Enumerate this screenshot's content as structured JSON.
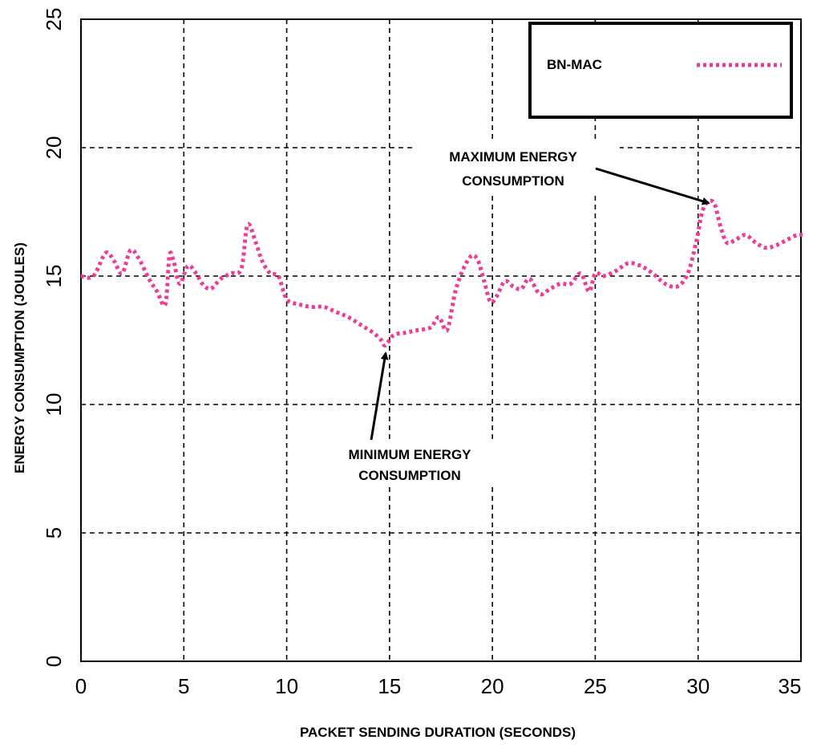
{
  "chart_data": {
    "type": "line",
    "title": "",
    "xlabel": "PACKET SENDING DURATION (SECONDS)",
    "ylabel": "ENERGY CONSUMPTION (JOULES)",
    "xlim": [
      0,
      35
    ],
    "ylim": [
      0,
      25
    ],
    "xticks": [
      0,
      5,
      10,
      15,
      20,
      25,
      30,
      35
    ],
    "yticks": [
      0,
      5,
      10,
      15,
      20,
      25
    ],
    "grid": true,
    "legend_position": "top-right",
    "series": [
      {
        "name": "BN-MAC",
        "color": "#ee3d96",
        "style": "dotted",
        "x": [
          0.0,
          0.6,
          1.2,
          1.6,
          2.0,
          2.4,
          2.8,
          3.3,
          3.7,
          4.1,
          4.3,
          4.5,
          4.8,
          5.2,
          5.6,
          5.9,
          6.3,
          6.8,
          7.3,
          7.8,
          8.1,
          8.5,
          8.8,
          9.2,
          9.6,
          10.0,
          10.6,
          11.2,
          11.8,
          12.4,
          13.0,
          13.6,
          14.2,
          14.6,
          14.8,
          15.2,
          15.8,
          16.4,
          17.0,
          17.4,
          17.8,
          18.2,
          18.6,
          19.0,
          19.3,
          19.6,
          19.9,
          20.2,
          20.6,
          21.0,
          21.4,
          21.8,
          22.3,
          22.8,
          23.3,
          23.8,
          24.3,
          24.7,
          25.0,
          25.4,
          26.0,
          26.6,
          27.2,
          27.8,
          28.4,
          29.0,
          29.5,
          29.9,
          30.2,
          30.5,
          30.8,
          31.1,
          31.4,
          31.8,
          32.3,
          32.8,
          33.3,
          33.8,
          34.3,
          34.8,
          35.1
        ],
        "y": [
          15.0,
          15.0,
          15.9,
          15.6,
          15.1,
          16.0,
          15.7,
          14.9,
          14.4,
          13.9,
          15.8,
          15.6,
          14.7,
          15.4,
          15.1,
          14.7,
          14.5,
          14.9,
          15.1,
          15.3,
          17.0,
          16.3,
          15.6,
          15.1,
          15.0,
          14.1,
          13.9,
          13.8,
          13.8,
          13.6,
          13.4,
          13.1,
          12.8,
          12.5,
          12.3,
          12.7,
          12.8,
          12.9,
          13.0,
          13.4,
          12.9,
          14.4,
          15.3,
          15.8,
          15.6,
          14.8,
          14.0,
          14.2,
          14.8,
          14.6,
          14.5,
          14.9,
          14.3,
          14.5,
          14.7,
          14.7,
          15.1,
          14.4,
          15.1,
          15.0,
          15.2,
          15.5,
          15.4,
          15.1,
          14.7,
          14.6,
          15.1,
          16.3,
          17.5,
          17.9,
          17.8,
          16.9,
          16.3,
          16.4,
          16.6,
          16.3,
          16.1,
          16.2,
          16.4,
          16.6,
          16.6
        ]
      }
    ],
    "annotations": [
      {
        "lines": [
          "MAXIMUM ENERGY",
          "CONSUMPTION"
        ],
        "target": [
          30.6,
          17.8
        ]
      },
      {
        "lines": [
          "MINIMUM ENERGY",
          "CONSUMPTION"
        ],
        "target": [
          14.8,
          12.3
        ]
      }
    ]
  }
}
